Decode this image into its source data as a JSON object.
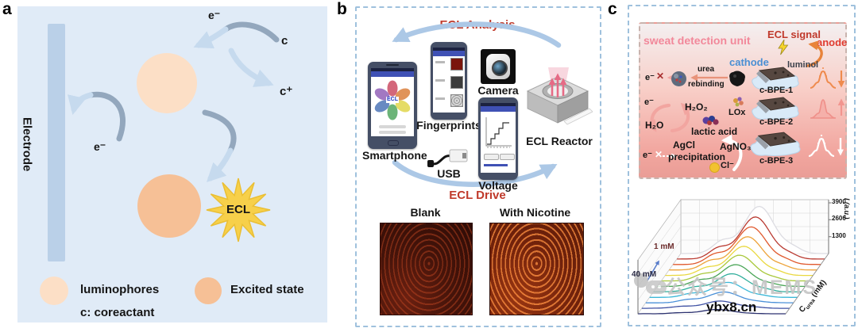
{
  "figure": {
    "panel_a_label": "a",
    "panel_b_label": "b",
    "panel_c_label": "c"
  },
  "panel_a": {
    "electrode_label": "Electrode",
    "electron_top": "e⁻",
    "electron_left": "e⁻",
    "coreactant": "c",
    "coreactant_cation": "c⁺",
    "ecl_star": "ECL",
    "legend_luminophores": "luminophores",
    "legend_coreactant": "c: coreactant",
    "legend_excited_state": "Excited state"
  },
  "panel_b": {
    "analysis_title": "ECL Analysis",
    "drive_title": "ECL Drive",
    "smartphone_label": "Smartphone",
    "app_name": "ECL",
    "fingerprints_label": "Fingerprints",
    "camera_label": "Camera",
    "reactor_label": "ECL Reactor",
    "usb_label": "USB",
    "voltage_label": "Voltage",
    "blank_label": "Blank",
    "nicotine_label": "With Nicotine"
  },
  "panel_c": {
    "unit_title": "sweat detection unit",
    "ecl_signal_label": "ECL signal",
    "anode_label": "anode",
    "luminol_label": "luminol",
    "cathode_label": "cathode",
    "row1": {
      "electron": "e⁻",
      "blocked_mark": "✕",
      "arrow_line1": "urea",
      "arrow_line2": "rebinding",
      "device": "c-BPE-1"
    },
    "row2": {
      "electron": "e⁻",
      "oxidant": "H₂O₂",
      "product": "H₂O",
      "substrate": "lactic acid",
      "enzyme": "LOx",
      "device": "c-BPE-2"
    },
    "row3": {
      "electron": "e⁻",
      "blocked_mark": "✕",
      "precipitate_line1": "AgCl",
      "precipitate_line2": "precipitation",
      "reagent": "AgNO₃",
      "ion": "Cl⁻",
      "device": "c-BPE-3"
    }
  },
  "chart_data": {
    "type": "line",
    "projection": "3d-waterfall",
    "title": "",
    "xlabel": "",
    "ylabel": "I (a.u.)",
    "depth_axis": {
      "prefix": "C",
      "subscript": "urea",
      "suffix": " (mM)"
    },
    "yticks": [
      "1300",
      "2600",
      "3900"
    ],
    "ylim": [
      0,
      4200
    ],
    "back_label": "1 mM",
    "front_label": "40 mM",
    "grid": true,
    "series": [
      {
        "concentration_mM": 1,
        "peak_intensity": 3900,
        "color": "#dcdce2"
      },
      {
        "concentration_mM": 2,
        "peak_intensity": 3450,
        "color": "#b93a31"
      },
      {
        "concentration_mM": 4,
        "peak_intensity": 3100,
        "color": "#e0592e"
      },
      {
        "concentration_mM": 6,
        "peak_intensity": 2750,
        "color": "#eda33a"
      },
      {
        "concentration_mM": 8,
        "peak_intensity": 2400,
        "color": "#e9d83f"
      },
      {
        "concentration_mM": 10,
        "peak_intensity": 2100,
        "color": "#a9c83c"
      },
      {
        "concentration_mM": 15,
        "peak_intensity": 1800,
        "color": "#4aa557"
      },
      {
        "concentration_mM": 20,
        "peak_intensity": 1500,
        "color": "#2fae9b"
      },
      {
        "concentration_mM": 25,
        "peak_intensity": 1200,
        "color": "#3cb8d8"
      },
      {
        "concentration_mM": 30,
        "peak_intensity": 900,
        "color": "#4a90d8"
      },
      {
        "concentration_mM": 35,
        "peak_intensity": 600,
        "color": "#3f51a3"
      },
      {
        "concentration_mM": 40,
        "peak_intensity": 320,
        "color": "#2c3270"
      }
    ]
  },
  "watermark": {
    "social": "公众号：MEMS",
    "site": "ybx8.cn"
  }
}
